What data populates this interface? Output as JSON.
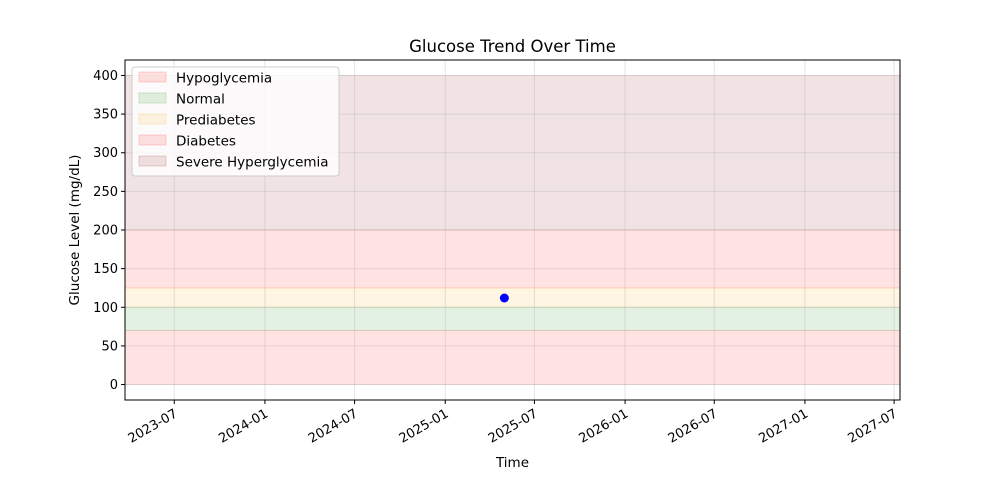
{
  "chart_data": {
    "type": "scatter",
    "title": "Glucose Trend Over Time",
    "xlabel": "Time",
    "ylabel": "Glucose Level (mg/dL)",
    "x_axis_type": "date",
    "xlim": [
      "2023-03-23",
      "2027-07-13"
    ],
    "ylim": [
      -20,
      420
    ],
    "x_ticks": [
      "2023-07",
      "2024-01",
      "2024-07",
      "2025-01",
      "2025-07",
      "2026-01",
      "2026-07",
      "2027-01",
      "2027-07"
    ],
    "y_ticks": [
      0,
      50,
      100,
      150,
      200,
      250,
      300,
      350,
      400
    ],
    "grid": true,
    "legend_position": "top-left",
    "bands": [
      {
        "name": "Hypoglycemia",
        "y_range": [
          0,
          70
        ],
        "color": "#ff0000",
        "opacity": 0.11
      },
      {
        "name": "Normal",
        "y_range": [
          70,
          100
        ],
        "color": "#008000",
        "opacity": 0.11
      },
      {
        "name": "Prediabetes",
        "y_range": [
          100,
          125
        ],
        "color": "#ffa500",
        "opacity": 0.11
      },
      {
        "name": "Diabetes",
        "y_range": [
          125,
          200
        ],
        "color": "#ff0000",
        "opacity": 0.11
      },
      {
        "name": "Severe Hyperglycemia",
        "y_range": [
          200,
          400
        ],
        "color": "#800000",
        "opacity": 0.11
      }
    ],
    "series": [
      {
        "points": [
          {
            "x": "2025-05-01",
            "y": 112
          }
        ],
        "color": "#0000ff"
      }
    ]
  }
}
